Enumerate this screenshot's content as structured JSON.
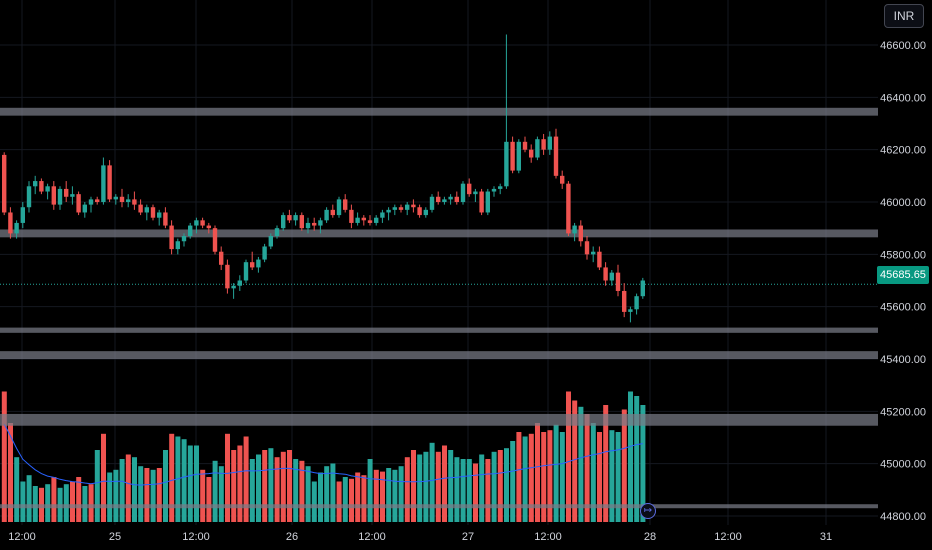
{
  "currency_label": "INR",
  "last_price_label": "45685.65",
  "scroll_button_icon": "go-to-realtime-icon",
  "colors": {
    "up": "#26a69a",
    "down": "#ef5350",
    "zone": "#787b86",
    "ma": "#2962ff",
    "grid": "#151820",
    "price_line": "#26a69a"
  },
  "chart_data": {
    "type": "candlestick",
    "title": "",
    "xlabel": "",
    "ylabel": "",
    "ylim": [
      44760,
      46700
    ],
    "x_tick_labels": [
      "12:00",
      "25",
      "12:00",
      "26",
      "12:00",
      "27",
      "12:00",
      "28",
      "12:00",
      "31"
    ],
    "y_tick_labels": [
      "46600.00",
      "46400.00",
      "46200.00",
      "46000.00",
      "45800.00",
      "45600.00",
      "45400.00",
      "45200.00",
      "45000.00",
      "44800.00"
    ],
    "y_tick_values": [
      46600,
      46400,
      46200,
      46000,
      45800,
      45600,
      45400,
      45200,
      45000,
      44800
    ],
    "last_price": 45685.65,
    "zones": [
      {
        "low": 46330,
        "high": 46360
      },
      {
        "low": 45865,
        "high": 45895
      },
      {
        "low": 45500,
        "high": 45520
      },
      {
        "low": 45400,
        "high": 45430
      },
      {
        "low": 45145,
        "high": 45190
      },
      {
        "low": 44830,
        "high": 44845
      }
    ],
    "candles": [
      [
        46180,
        46190,
        45950,
        45960
      ],
      [
        45960,
        45980,
        45860,
        45880
      ],
      [
        45880,
        45930,
        45860,
        45920
      ],
      [
        45920,
        46000,
        45900,
        45980
      ],
      [
        45980,
        46080,
        45960,
        46060
      ],
      [
        46060,
        46100,
        46030,
        46080
      ],
      [
        46080,
        46090,
        46030,
        46040
      ],
      [
        46040,
        46070,
        46010,
        46060
      ],
      [
        46060,
        46080,
        45970,
        45990
      ],
      [
        45990,
        46060,
        45970,
        46050
      ],
      [
        46050,
        46080,
        46000,
        46020
      ],
      [
        46020,
        46060,
        45990,
        46030
      ],
      [
        46030,
        46040,
        45950,
        45960
      ],
      [
        45960,
        46000,
        45940,
        45990
      ],
      [
        45990,
        46020,
        45960,
        46010
      ],
      [
        46010,
        46020,
        45990,
        46000
      ],
      [
        46000,
        46170,
        45990,
        46140
      ],
      [
        46140,
        46160,
        46000,
        46010
      ],
      [
        46010,
        46030,
        45990,
        46020
      ],
      [
        46020,
        46050,
        45980,
        46000
      ],
      [
        46000,
        46030,
        45980,
        46010
      ],
      [
        46010,
        46040,
        45970,
        45990
      ],
      [
        45990,
        46010,
        45950,
        45960
      ],
      [
        45960,
        45990,
        45930,
        45980
      ],
      [
        45980,
        45990,
        45930,
        45940
      ],
      [
        45940,
        45970,
        45910,
        45960
      ],
      [
        45960,
        45980,
        45900,
        45910
      ],
      [
        45910,
        45930,
        45800,
        45820
      ],
      [
        45820,
        45860,
        45800,
        45850
      ],
      [
        45850,
        45880,
        45830,
        45870
      ],
      [
        45870,
        45920,
        45860,
        45910
      ],
      [
        45910,
        45940,
        45880,
        45930
      ],
      [
        45930,
        45940,
        45900,
        45910
      ],
      [
        45910,
        45920,
        45880,
        45900
      ],
      [
        45900,
        45910,
        45800,
        45810
      ],
      [
        45810,
        45830,
        45740,
        45760
      ],
      [
        45760,
        45780,
        45650,
        45670
      ],
      [
        45670,
        45690,
        45630,
        45680
      ],
      [
        45680,
        45720,
        45660,
        45700
      ],
      [
        45700,
        45780,
        45690,
        45770
      ],
      [
        45770,
        45810,
        45740,
        45750
      ],
      [
        45750,
        45790,
        45730,
        45780
      ],
      [
        45780,
        45840,
        45770,
        45830
      ],
      [
        45830,
        45880,
        45820,
        45870
      ],
      [
        45870,
        45910,
        45860,
        45900
      ],
      [
        45900,
        45960,
        45890,
        45950
      ],
      [
        45950,
        45970,
        45920,
        45930
      ],
      [
        45930,
        45960,
        45910,
        45950
      ],
      [
        45950,
        45960,
        45890,
        45900
      ],
      [
        45900,
        45940,
        45880,
        45920
      ],
      [
        45920,
        45940,
        45890,
        45910
      ],
      [
        45910,
        45940,
        45880,
        45930
      ],
      [
        45930,
        45980,
        45920,
        45970
      ],
      [
        45970,
        45990,
        45940,
        45950
      ],
      [
        45950,
        46020,
        45940,
        46010
      ],
      [
        46010,
        46030,
        45960,
        45970
      ],
      [
        45970,
        45990,
        45900,
        45920
      ],
      [
        45920,
        45960,
        45910,
        45940
      ],
      [
        45940,
        45950,
        45910,
        45930
      ],
      [
        45930,
        45950,
        45910,
        45920
      ],
      [
        45920,
        45950,
        45910,
        45940
      ],
      [
        45940,
        45970,
        45920,
        45960
      ],
      [
        45960,
        45980,
        45930,
        45970
      ],
      [
        45970,
        45990,
        45950,
        45980
      ],
      [
        45980,
        45990,
        45960,
        45970
      ],
      [
        45970,
        46000,
        45950,
        45990
      ],
      [
        45990,
        46010,
        45960,
        45980
      ],
      [
        45980,
        45990,
        45940,
        45950
      ],
      [
        45950,
        45980,
        45940,
        45970
      ],
      [
        45970,
        46030,
        45960,
        46020
      ],
      [
        46020,
        46040,
        45990,
        46000
      ],
      [
        46000,
        46020,
        45990,
        46010
      ],
      [
        46010,
        46030,
        45990,
        46020
      ],
      [
        46020,
        46040,
        45990,
        46000
      ],
      [
        46000,
        46080,
        45990,
        46070
      ],
      [
        46070,
        46090,
        46020,
        46030
      ],
      [
        46030,
        46050,
        46000,
        46040
      ],
      [
        46040,
        46050,
        45950,
        45960
      ],
      [
        45960,
        46050,
        45950,
        46040
      ],
      [
        46040,
        46060,
        46020,
        46050
      ],
      [
        46050,
        46070,
        46030,
        46060
      ],
      [
        46060,
        46640,
        46050,
        46230
      ],
      [
        46230,
        46250,
        46110,
        46120
      ],
      [
        46120,
        46240,
        46110,
        46230
      ],
      [
        46230,
        46250,
        46190,
        46200
      ],
      [
        46200,
        46220,
        46150,
        46170
      ],
      [
        46170,
        46250,
        46160,
        46240
      ],
      [
        46240,
        46260,
        46180,
        46200
      ],
      [
        46200,
        46270,
        46180,
        46250
      ],
      [
        46250,
        46280,
        46090,
        46100
      ],
      [
        46100,
        46120,
        46050,
        46070
      ],
      [
        46070,
        46080,
        45870,
        45880
      ],
      [
        45880,
        45920,
        45850,
        45910
      ],
      [
        45910,
        45930,
        45830,
        45850
      ],
      [
        45850,
        45870,
        45780,
        45800
      ],
      [
        45800,
        45830,
        45770,
        45810
      ],
      [
        45810,
        45830,
        45740,
        45750
      ],
      [
        45750,
        45770,
        45680,
        45700
      ],
      [
        45700,
        45740,
        45680,
        45730
      ],
      [
        45730,
        45760,
        45640,
        45660
      ],
      [
        45660,
        45690,
        45560,
        45580
      ],
      [
        45580,
        45600,
        45540,
        45590
      ],
      [
        45590,
        45650,
        45570,
        45640
      ],
      [
        45640,
        45710,
        45630,
        45700
      ]
    ],
    "volume": [
      [
        145,
        0
      ],
      [
        110,
        0
      ],
      [
        72,
        1
      ],
      [
        45,
        1
      ],
      [
        52,
        1
      ],
      [
        40,
        1
      ],
      [
        38,
        0
      ],
      [
        42,
        1
      ],
      [
        50,
        0
      ],
      [
        38,
        1
      ],
      [
        42,
        1
      ],
      [
        45,
        0
      ],
      [
        50,
        0
      ],
      [
        40,
        1
      ],
      [
        42,
        0
      ],
      [
        80,
        1
      ],
      [
        98,
        0
      ],
      [
        55,
        1
      ],
      [
        58,
        1
      ],
      [
        70,
        1
      ],
      [
        75,
        0
      ],
      [
        72,
        1
      ],
      [
        62,
        1
      ],
      [
        60,
        0
      ],
      [
        58,
        1
      ],
      [
        60,
        0
      ],
      [
        80,
        1
      ],
      [
        98,
        0
      ],
      [
        95,
        1
      ],
      [
        92,
        1
      ],
      [
        85,
        1
      ],
      [
        85,
        1
      ],
      [
        58,
        0
      ],
      [
        50,
        0
      ],
      [
        68,
        1
      ],
      [
        62,
        1
      ],
      [
        98,
        0
      ],
      [
        80,
        0
      ],
      [
        85,
        0
      ],
      [
        95,
        0
      ],
      [
        70,
        1
      ],
      [
        75,
        1
      ],
      [
        80,
        0
      ],
      [
        82,
        1
      ],
      [
        72,
        0
      ],
      [
        78,
        0
      ],
      [
        80,
        0
      ],
      [
        70,
        1
      ],
      [
        68,
        0
      ],
      [
        62,
        1
      ],
      [
        45,
        1
      ],
      [
        55,
        1
      ],
      [
        62,
        1
      ],
      [
        65,
        1
      ],
      [
        45,
        0
      ],
      [
        50,
        1
      ],
      [
        48,
        0
      ],
      [
        55,
        0
      ],
      [
        52,
        0
      ],
      [
        70,
        1
      ],
      [
        58,
        0
      ],
      [
        56,
        0
      ],
      [
        60,
        1
      ],
      [
        58,
        1
      ],
      [
        62,
        1
      ],
      [
        72,
        0
      ],
      [
        80,
        0
      ],
      [
        75,
        1
      ],
      [
        78,
        1
      ],
      [
        88,
        1
      ],
      [
        78,
        0
      ],
      [
        85,
        0
      ],
      [
        80,
        1
      ],
      [
        72,
        1
      ],
      [
        70,
        1
      ],
      [
        70,
        1
      ],
      [
        65,
        0
      ],
      [
        75,
        1
      ],
      [
        70,
        0
      ],
      [
        78,
        1
      ],
      [
        80,
        0
      ],
      [
        82,
        1
      ],
      [
        90,
        1
      ],
      [
        100,
        0
      ],
      [
        95,
        1
      ],
      [
        98,
        0
      ],
      [
        110,
        0
      ],
      [
        100,
        0
      ],
      [
        102,
        0
      ],
      [
        108,
        1
      ],
      [
        100,
        1
      ],
      [
        145,
        0
      ],
      [
        135,
        0
      ],
      [
        128,
        1
      ],
      [
        120,
        0
      ],
      [
        110,
        1
      ],
      [
        100,
        0
      ],
      [
        130,
        0
      ],
      [
        102,
        1
      ],
      [
        100,
        1
      ],
      [
        125,
        0
      ],
      [
        145,
        1
      ],
      [
        140,
        1
      ],
      [
        130,
        1
      ]
    ]
  }
}
